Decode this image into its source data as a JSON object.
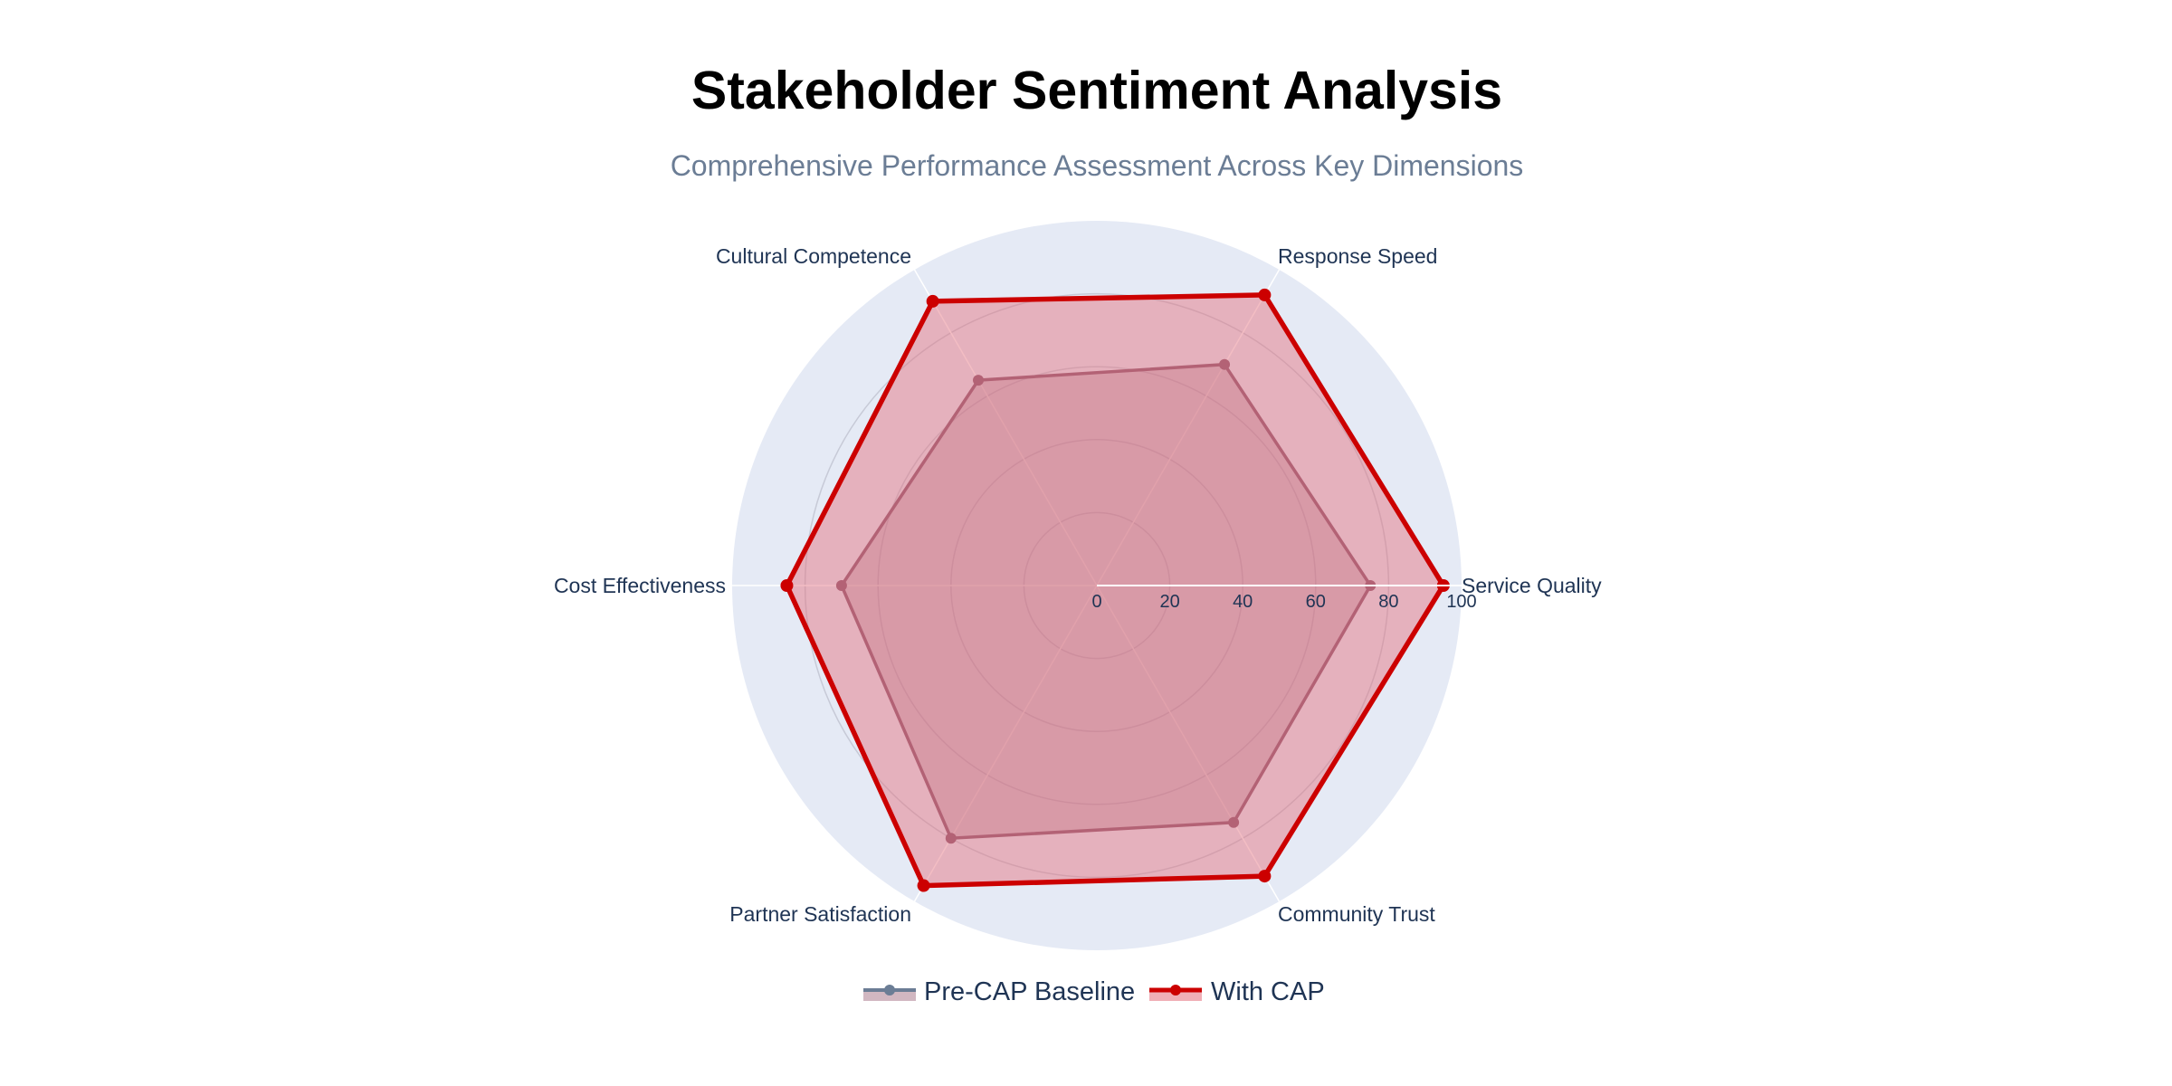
{
  "chart_data": {
    "type": "radar",
    "title": "Stakeholder Sentiment Analysis",
    "subtitle": "Comprehensive Performance Assessment Across Key Dimensions",
    "categories": [
      "Service Quality",
      "Response Speed",
      "Cultural Competence",
      "Cost Effectiveness",
      "Partner Satisfaction",
      "Community Trust"
    ],
    "radial_range": [
      0,
      100
    ],
    "radial_ticks": [
      0,
      20,
      40,
      60,
      80,
      100
    ],
    "grid": true,
    "legend_position": "bottom-center",
    "series": [
      {
        "name": "Pre-CAP Baseline",
        "values": [
          75,
          70,
          65,
          70,
          80,
          75
        ],
        "line_color": "#8b5a72",
        "fill_color": "#a36f83",
        "fill_opacity": 0.35,
        "legend_color": "#6b7d95"
      },
      {
        "name": "With CAP",
        "values": [
          95,
          92,
          90,
          85,
          95,
          92
        ],
        "line_color": "#cc0000",
        "fill_color": "#e46c7a",
        "fill_opacity": 0.45,
        "legend_color": "#cc0000"
      }
    ],
    "colors": {
      "polar_background": "#e5eaf5",
      "grid_line": "#c7cad7",
      "spoke_line": "#ffffff"
    }
  }
}
